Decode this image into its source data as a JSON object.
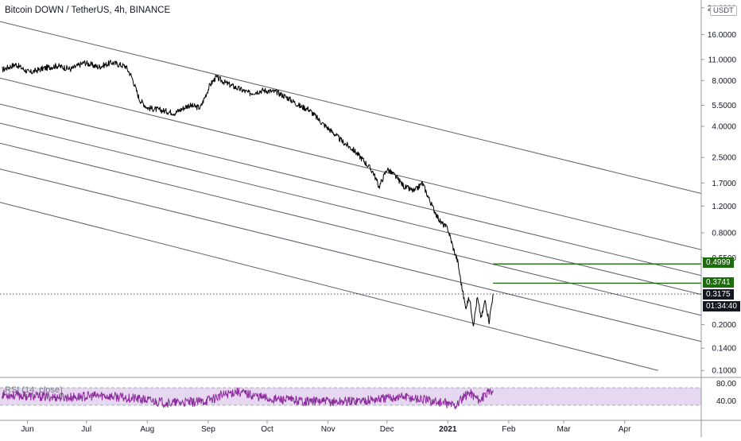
{
  "header": {
    "title": "Bitcoin DOWN / TetherUS, 4h, BINANCE",
    "unit": "USDT",
    "rsi_title": "RSI (14, close)"
  },
  "colors": {
    "price_line": "#000000",
    "channel_lines": "#5d606b",
    "target_lines": "#1e6b0e",
    "rsi_line": "#8e2c9e",
    "rsi_band": "#e6d8f0"
  },
  "chart_data": [
    {
      "type": "line",
      "scale": "log",
      "x_ticks": [
        "Jun",
        "Jul",
        "Aug",
        "Sep",
        "Oct",
        "Nov",
        "Dec",
        "2021",
        "Feb",
        "Mar",
        "Apr"
      ],
      "y_ticks": [
        "24.0000",
        "16.0000",
        "11.0000",
        "8.0000",
        "5.5000",
        "4.0000",
        "2.5000",
        "1.7000",
        "1.2000",
        "0.8000",
        "0.5500",
        "0.2000",
        "0.1400",
        "0.1000"
      ],
      "x_range": [
        "2020-05-18",
        "2021-05-10"
      ],
      "ylim": [
        0.09,
        27
      ],
      "series": [
        {
          "x": [
            "2020-05-19",
            "2020-05-26",
            "2020-06-02",
            "2020-06-09",
            "2020-06-16",
            "2020-06-23",
            "2020-06-30",
            "2020-07-07",
            "2020-07-14",
            "2020-07-21",
            "2020-07-24",
            "2020-07-28",
            "2020-08-01",
            "2020-08-08",
            "2020-08-15",
            "2020-08-22",
            "2020-08-28",
            "2020-09-02",
            "2020-09-05",
            "2020-09-10",
            "2020-09-15",
            "2020-09-22",
            "2020-09-29",
            "2020-10-06",
            "2020-10-12",
            "2020-10-18",
            "2020-10-22",
            "2020-10-29",
            "2020-11-04",
            "2020-11-08",
            "2020-11-14",
            "2020-11-19",
            "2020-11-24",
            "2020-11-27",
            "2020-12-01",
            "2020-12-05",
            "2020-12-10",
            "2020-12-15",
            "2020-12-19",
            "2020-12-24",
            "2020-12-28",
            "2021-01-01",
            "2021-01-04",
            "2021-01-06",
            "2021-01-08",
            "2021-01-10",
            "2021-01-12",
            "2021-01-14",
            "2021-01-16",
            "2021-01-18",
            "2021-01-20",
            "2021-01-22",
            "2021-01-24"
          ],
          "values": [
            9.4,
            10.2,
            9.0,
            9.6,
            10.0,
            9.5,
            10.5,
            9.8,
            10.5,
            9.9,
            8.5,
            6.0,
            5.3,
            5.1,
            4.9,
            5.5,
            5.3,
            7.5,
            8.4,
            7.7,
            7.2,
            6.6,
            6.9,
            6.7,
            6.1,
            5.4,
            5.2,
            4.2,
            3.6,
            3.2,
            2.8,
            2.4,
            2.0,
            1.6,
            2.1,
            1.9,
            1.6,
            1.5,
            1.7,
            1.2,
            0.95,
            0.85,
            0.62,
            0.52,
            0.36,
            0.26,
            0.3,
            0.2,
            0.3,
            0.22,
            0.29,
            0.21,
            0.3175
          ]
        }
      ],
      "channel_lines": [
        {
          "x": [
            "2020-05-18",
            "2021-05-10"
          ],
          "values": [
            19.5,
            1.45
          ]
        },
        {
          "x": [
            "2020-05-18",
            "2021-05-10"
          ],
          "values": [
            8.3,
            0.62
          ]
        },
        {
          "x": [
            "2020-05-18",
            "2021-05-10"
          ],
          "values": [
            5.6,
            0.42
          ]
        },
        {
          "x": [
            "2020-05-18",
            "2021-05-10"
          ],
          "values": [
            4.2,
            0.315
          ]
        },
        {
          "x": [
            "2020-05-18",
            "2021-05-10"
          ],
          "values": [
            3.1,
            0.23
          ]
        },
        {
          "x": [
            "2020-05-18",
            "2021-05-10"
          ],
          "values": [
            2.1,
            0.155
          ]
        },
        {
          "x": [
            "2020-05-18",
            "2021-04-18"
          ],
          "values": [
            1.27,
            0.1
          ]
        }
      ],
      "target_levels": [
        {
          "from": "2021-01-24",
          "value": 0.4999,
          "label": "0.4999"
        },
        {
          "from": "2021-01-24",
          "value": 0.3741,
          "label": "0.3741"
        }
      ],
      "last_price": {
        "value": 0.3175,
        "label": "0.3175",
        "countdown": "01:34:40"
      }
    },
    {
      "type": "line",
      "name": "RSI (14, close)",
      "y_ticks": [
        "80.00",
        "40.00"
      ],
      "ylim": [
        10,
        90
      ],
      "band": [
        30,
        70
      ],
      "x": [
        "2020-05-19",
        "2020-06-05",
        "2020-06-22",
        "2020-07-09",
        "2020-07-26",
        "2020-08-12",
        "2020-08-29",
        "2020-09-15",
        "2020-10-02",
        "2020-10-19",
        "2020-11-05",
        "2020-11-22",
        "2020-12-09",
        "2020-12-26",
        "2021-01-05",
        "2021-01-12",
        "2021-01-17",
        "2021-01-24"
      ],
      "values": [
        55,
        50,
        48,
        52,
        45,
        35,
        38,
        62,
        45,
        40,
        38,
        42,
        50,
        38,
        30,
        60,
        42,
        65
      ]
    }
  ]
}
